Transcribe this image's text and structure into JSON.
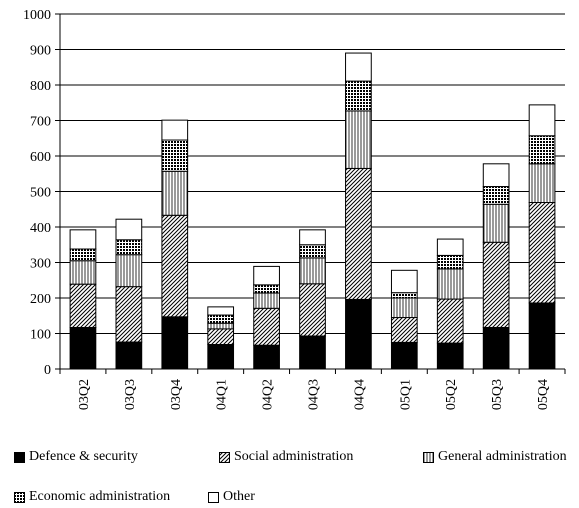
{
  "chart_data": {
    "type": "bar",
    "stacked": true,
    "categories": [
      "03Q2",
      "03Q3",
      "03Q4",
      "04Q1",
      "04Q2",
      "04Q3",
      "04Q4",
      "05Q1",
      "05Q2",
      "05Q3",
      "05Q4"
    ],
    "series": [
      {
        "name": "Defence & security",
        "values": [
          117,
          76,
          147,
          69,
          67,
          93,
          196,
          75,
          73,
          117,
          186
        ],
        "pattern": "solid-black"
      },
      {
        "name": "Social administration",
        "values": [
          122,
          156,
          286,
          44,
          104,
          147,
          369,
          70,
          124,
          240,
          283
        ],
        "pattern": "diagonal-hatch"
      },
      {
        "name": "General administration",
        "values": [
          66,
          90,
          124,
          16,
          43,
          73,
          162,
          55,
          85,
          107,
          109
        ],
        "pattern": "vertical-lines"
      },
      {
        "name": "Economic administration",
        "values": [
          33,
          42,
          88,
          23,
          23,
          37,
          84,
          15,
          38,
          50,
          79
        ],
        "pattern": "dense-grid"
      },
      {
        "name": "Other",
        "values": [
          54,
          58,
          56,
          23,
          52,
          42,
          79,
          63,
          46,
          64,
          87
        ],
        "pattern": "white"
      }
    ],
    "ylim": [
      0,
      1000
    ],
    "yticks": [
      "0",
      "100",
      "200",
      "300",
      "400",
      "500",
      "600",
      "700",
      "800",
      "900",
      "1000"
    ],
    "grid": true,
    "legend_position": "bottom",
    "title": "",
    "xlabel": "",
    "ylabel": ""
  },
  "legend": {
    "row1": [
      "Defence & security",
      "Social administration",
      "General administration"
    ],
    "row2": [
      "Economic administration",
      "Other"
    ]
  }
}
